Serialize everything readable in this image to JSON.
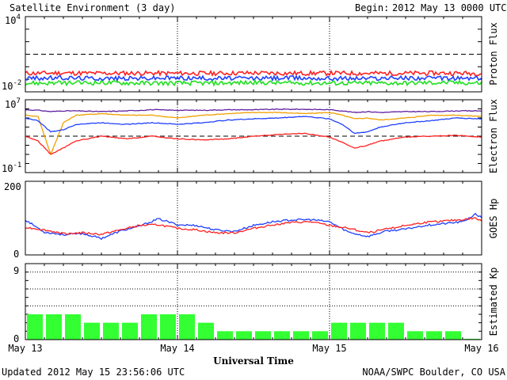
{
  "header": {
    "title": "Satellite Environment (3 day)",
    "begin_label": "Begin:",
    "begin_value": "2012 May 13 0000 UTC"
  },
  "footer": {
    "updated": "Updated 2012 May 15 23:56:06 UTC",
    "credit": "NOAA/SWPC Boulder, CO USA"
  },
  "colors": {
    "red": "#ff2020",
    "blue": "#2040ff",
    "green": "#20e020",
    "orange": "#f0a000",
    "purple": "#6020a0",
    "kp_fill": "#33ff33"
  },
  "chart_data": [
    {
      "type": "line",
      "ylabel": "Proton Flux",
      "ytick_labels": {
        "top_base": "10",
        "top_exp": "4",
        "bottom_base": "10",
        "bottom_exp": "-2"
      },
      "scale": "log",
      "ylim": [
        0.01,
        10000
      ],
      "threshold": 10,
      "x": [
        0,
        6,
        12,
        18,
        24,
        30,
        36,
        42,
        48,
        54,
        60,
        66,
        72
      ],
      "series": [
        {
          "color": "red",
          "values": [
            0.3,
            0.32,
            0.3,
            0.31,
            0.3,
            0.3,
            0.32,
            0.3,
            0.31,
            0.3,
            0.3,
            0.31,
            0.3
          ]
        },
        {
          "color": "blue",
          "values": [
            0.12,
            0.13,
            0.12,
            0.12,
            0.13,
            0.12,
            0.12,
            0.13,
            0.12,
            0.12,
            0.13,
            0.12,
            0.12
          ]
        },
        {
          "color": "green",
          "values": [
            0.05,
            0.05,
            0.055,
            0.05,
            0.05,
            0.05,
            0.055,
            0.05,
            0.05,
            0.05,
            0.05,
            0.055,
            0.05
          ]
        }
      ]
    },
    {
      "type": "line",
      "ylabel": "Electron Flux",
      "ytick_labels": {
        "top_base": "10",
        "top_exp": "7",
        "bottom_base": "10",
        "bottom_exp": "-1"
      },
      "scale": "log",
      "ylim": [
        0.1,
        10000000
      ],
      "threshold": 1000,
      "x": [
        0,
        2,
        4,
        6,
        8,
        12,
        16,
        20,
        24,
        28,
        32,
        36,
        40,
        44,
        48,
        50,
        52,
        54,
        56,
        60,
        64,
        68,
        72
      ],
      "series": [
        {
          "color": "purple",
          "values": [
            800000,
            700000,
            500000,
            600000,
            600000,
            500000,
            600000,
            800000,
            700000,
            700000,
            800000,
            800000,
            900000,
            900000,
            800000,
            600000,
            400000,
            500000,
            400000,
            500000,
            500000,
            600000,
            600000
          ]
        },
        {
          "color": "orange",
          "values": [
            200000,
            150000,
            10,
            30000,
            200000,
            300000,
            200000,
            200000,
            100000,
            200000,
            300000,
            400000,
            400000,
            300000,
            400000,
            200000,
            80000,
            100000,
            60000,
            100000,
            200000,
            200000,
            150000
          ]
        },
        {
          "color": "blue",
          "values": [
            100000,
            50000,
            3000,
            5000,
            20000,
            30000,
            20000,
            30000,
            20000,
            30000,
            60000,
            80000,
            100000,
            150000,
            80000,
            20000,
            2000,
            3000,
            10000,
            30000,
            50000,
            100000,
            80000
          ]
        },
        {
          "color": "red",
          "values": [
            1000,
            300,
            10,
            50,
            300,
            1000,
            500,
            1000,
            500,
            400,
            500,
            1000,
            1500,
            2000,
            800,
            200,
            50,
            100,
            300,
            800,
            1000,
            1200,
            800
          ]
        }
      ]
    },
    {
      "type": "line",
      "ylabel": "GOES Hp",
      "ytick_labels": {
        "top": "200",
        "bottom": "0"
      },
      "ylim": [
        0,
        200
      ],
      "x": [
        0,
        3,
        6,
        9,
        12,
        15,
        18,
        21,
        24,
        27,
        30,
        33,
        36,
        39,
        42,
        45,
        48,
        51,
        54,
        57,
        60,
        63,
        66,
        69,
        71,
        72
      ],
      "series": [
        {
          "color": "blue",
          "values": [
            95,
            62,
            55,
            58,
            45,
            65,
            78,
            98,
            82,
            80,
            68,
            64,
            80,
            90,
            95,
            96,
            90,
            62,
            50,
            65,
            70,
            80,
            85,
            90,
            110,
            102
          ]
        },
        {
          "color": "red",
          "values": [
            75,
            68,
            58,
            60,
            56,
            68,
            80,
            82,
            72,
            68,
            60,
            60,
            72,
            82,
            88,
            90,
            80,
            72,
            60,
            70,
            80,
            88,
            92,
            96,
            100,
            92
          ]
        }
      ]
    },
    {
      "type": "bar",
      "ylabel": "Estimated Kp",
      "ytick_labels": {
        "top": "9",
        "bottom": "0"
      },
      "ylim": [
        0,
        9
      ],
      "bin_hours": 3,
      "values": [
        3,
        3,
        3,
        2,
        2,
        2,
        3,
        3,
        3,
        2,
        1,
        1,
        1,
        1,
        1,
        1,
        2,
        2,
        2,
        2,
        1,
        1,
        1,
        0.1
      ],
      "xtick_labels": [
        "May 13",
        "May 14",
        "May 15",
        "May 16"
      ],
      "xlabel": "Universal Time"
    }
  ]
}
